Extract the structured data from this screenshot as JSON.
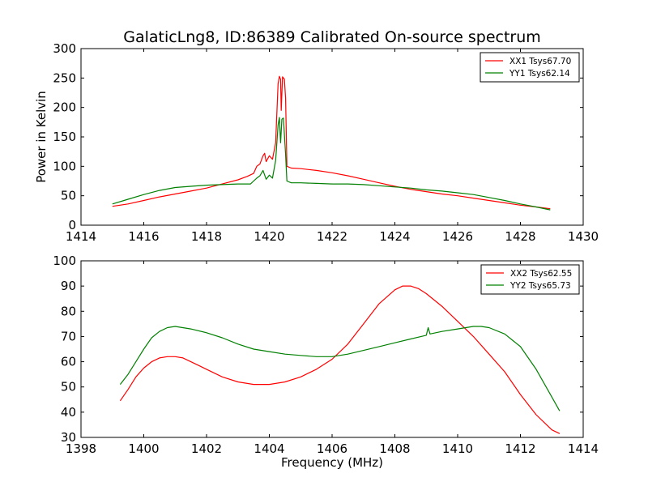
{
  "figure": {
    "title": "GalaticLng8, ID:86389 Calibrated On-source spectrum"
  },
  "chart_data": [
    {
      "type": "line",
      "ylabel": "Power in Kelvin",
      "xlabel": "",
      "xlim": [
        1414,
        1430
      ],
      "ylim": [
        0,
        300
      ],
      "xticks": [
        1414,
        1416,
        1418,
        1420,
        1422,
        1424,
        1426,
        1428,
        1430
      ],
      "yticks": [
        0,
        50,
        100,
        150,
        200,
        250,
        300
      ],
      "grid": false,
      "legend_position": "top-right",
      "series": [
        {
          "name": "XX1 Tsys67.70",
          "color": "#ff0000",
          "points": [
            [
              1415.0,
              32
            ],
            [
              1415.5,
              36
            ],
            [
              1416.0,
              42
            ],
            [
              1416.5,
              48
            ],
            [
              1417.0,
              53
            ],
            [
              1417.5,
              58
            ],
            [
              1418.0,
              63
            ],
            [
              1418.5,
              70
            ],
            [
              1419.0,
              77
            ],
            [
              1419.3,
              83
            ],
            [
              1419.5,
              88
            ],
            [
              1419.6,
              100
            ],
            [
              1419.7,
              104
            ],
            [
              1419.8,
              118
            ],
            [
              1419.85,
              122
            ],
            [
              1419.9,
              108
            ],
            [
              1420.0,
              118
            ],
            [
              1420.1,
              112
            ],
            [
              1420.2,
              140
            ],
            [
              1420.28,
              240
            ],
            [
              1420.32,
              253
            ],
            [
              1420.36,
              248
            ],
            [
              1420.38,
              195
            ],
            [
              1420.42,
              252
            ],
            [
              1420.48,
              248
            ],
            [
              1420.52,
              215
            ],
            [
              1420.56,
              100
            ],
            [
              1420.7,
              97
            ],
            [
              1421.0,
              96
            ],
            [
              1421.5,
              93
            ],
            [
              1422.0,
              89
            ],
            [
              1422.5,
              84
            ],
            [
              1423.0,
              78
            ],
            [
              1423.5,
              72
            ],
            [
              1424.0,
              66
            ],
            [
              1424.5,
              61
            ],
            [
              1425.0,
              57
            ],
            [
              1425.5,
              53
            ],
            [
              1426.0,
              50
            ],
            [
              1426.5,
              46
            ],
            [
              1427.0,
              42
            ],
            [
              1427.5,
              38
            ],
            [
              1428.0,
              34
            ],
            [
              1428.5,
              31
            ],
            [
              1428.95,
              28
            ]
          ]
        },
        {
          "name": "YY1 Tsys62.14",
          "color": "#008000",
          "points": [
            [
              1415.0,
              36
            ],
            [
              1415.5,
              44
            ],
            [
              1416.0,
              52
            ],
            [
              1416.5,
              59
            ],
            [
              1417.0,
              64
            ],
            [
              1417.5,
              66
            ],
            [
              1418.0,
              68
            ],
            [
              1418.5,
              69
            ],
            [
              1419.0,
              70
            ],
            [
              1419.4,
              70
            ],
            [
              1419.5,
              75
            ],
            [
              1419.6,
              80
            ],
            [
              1419.7,
              84
            ],
            [
              1419.8,
              93
            ],
            [
              1419.9,
              78
            ],
            [
              1420.0,
              85
            ],
            [
              1420.1,
              80
            ],
            [
              1420.2,
              110
            ],
            [
              1420.28,
              170
            ],
            [
              1420.32,
              183
            ],
            [
              1420.36,
              140
            ],
            [
              1420.4,
              180
            ],
            [
              1420.45,
              182
            ],
            [
              1420.52,
              120
            ],
            [
              1420.56,
              75
            ],
            [
              1420.7,
              72
            ],
            [
              1421.0,
              72
            ],
            [
              1421.5,
              71
            ],
            [
              1422.0,
              70
            ],
            [
              1422.5,
              70
            ],
            [
              1423.0,
              69
            ],
            [
              1423.5,
              67
            ],
            [
              1424.0,
              65
            ],
            [
              1424.5,
              63
            ],
            [
              1425.0,
              60
            ],
            [
              1425.5,
              58
            ],
            [
              1426.0,
              55
            ],
            [
              1426.5,
              52
            ],
            [
              1427.0,
              47
            ],
            [
              1427.5,
              42
            ],
            [
              1428.0,
              36
            ],
            [
              1428.5,
              31
            ],
            [
              1428.95,
              26
            ]
          ]
        }
      ]
    },
    {
      "type": "line",
      "ylabel": "",
      "xlabel": "Frequency (MHz)",
      "xlim": [
        1398,
        1414
      ],
      "ylim": [
        30,
        100
      ],
      "xticks": [
        1398,
        1400,
        1402,
        1404,
        1406,
        1408,
        1410,
        1412,
        1414
      ],
      "yticks": [
        30,
        40,
        50,
        60,
        70,
        80,
        90,
        100
      ],
      "grid": false,
      "legend_position": "top-right",
      "series": [
        {
          "name": "XX2 Tsys62.55",
          "color": "#ff0000",
          "points": [
            [
              1399.25,
              44.5
            ],
            [
              1399.5,
              49
            ],
            [
              1399.75,
              54
            ],
            [
              1400.0,
              57.5
            ],
            [
              1400.25,
              60
            ],
            [
              1400.5,
              61.5
            ],
            [
              1400.75,
              62
            ],
            [
              1401.0,
              62
            ],
            [
              1401.25,
              61.5
            ],
            [
              1401.5,
              60
            ],
            [
              1401.75,
              58.5
            ],
            [
              1402.0,
              57
            ],
            [
              1402.5,
              54
            ],
            [
              1403.0,
              52
            ],
            [
              1403.5,
              51
            ],
            [
              1404.0,
              51
            ],
            [
              1404.5,
              52
            ],
            [
              1405.0,
              54
            ],
            [
              1405.5,
              57
            ],
            [
              1406.0,
              61
            ],
            [
              1406.5,
              67
            ],
            [
              1407.0,
              75
            ],
            [
              1407.5,
              83
            ],
            [
              1408.0,
              88.5
            ],
            [
              1408.25,
              90
            ],
            [
              1408.5,
              90
            ],
            [
              1408.75,
              89
            ],
            [
              1409.0,
              87
            ],
            [
              1409.5,
              82
            ],
            [
              1410.0,
              76
            ],
            [
              1410.5,
              70
            ],
            [
              1411.0,
              63
            ],
            [
              1411.5,
              56
            ],
            [
              1412.0,
              47
            ],
            [
              1412.5,
              39
            ],
            [
              1413.0,
              33
            ],
            [
              1413.25,
              31.5
            ]
          ]
        },
        {
          "name": "YY2 Tsys65.73",
          "color": "#008000",
          "points": [
            [
              1399.25,
              51
            ],
            [
              1399.5,
              55
            ],
            [
              1399.75,
              60
            ],
            [
              1400.0,
              65
            ],
            [
              1400.25,
              69.5
            ],
            [
              1400.5,
              72
            ],
            [
              1400.75,
              73.5
            ],
            [
              1401.0,
              74
            ],
            [
              1401.5,
              73
            ],
            [
              1402.0,
              71.5
            ],
            [
              1402.5,
              69.5
            ],
            [
              1403.0,
              67
            ],
            [
              1403.5,
              65
            ],
            [
              1404.0,
              64
            ],
            [
              1404.5,
              63
            ],
            [
              1405.0,
              62.5
            ],
            [
              1405.5,
              62
            ],
            [
              1406.0,
              62
            ],
            [
              1406.5,
              63
            ],
            [
              1407.0,
              64.5
            ],
            [
              1407.5,
              66
            ],
            [
              1408.0,
              67.5
            ],
            [
              1408.5,
              69
            ],
            [
              1409.0,
              70.5
            ],
            [
              1409.06,
              73.5
            ],
            [
              1409.12,
              71
            ],
            [
              1409.5,
              72
            ],
            [
              1410.0,
              73
            ],
            [
              1410.5,
              74
            ],
            [
              1410.75,
              74
            ],
            [
              1411.0,
              73.5
            ],
            [
              1411.5,
              71
            ],
            [
              1412.0,
              66
            ],
            [
              1412.5,
              57
            ],
            [
              1413.0,
              46
            ],
            [
              1413.25,
              40.5
            ]
          ]
        }
      ]
    }
  ]
}
